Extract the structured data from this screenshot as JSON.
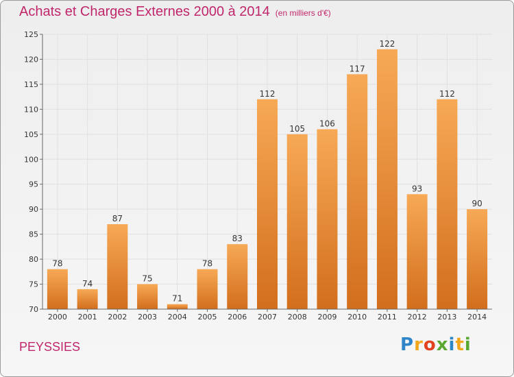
{
  "title": "Achats et Charges Externes 2000 à 2014",
  "subtitle": "(en milliers d'€)",
  "commune": "PEYSSIES",
  "logo": {
    "letters": [
      "P",
      "r",
      "o",
      "x",
      "i",
      "t",
      "i"
    ],
    "colors": [
      "#2e86c9",
      "#f2a71b",
      "#e2421f",
      "#5aa832",
      "#2e86c9",
      "#f2a71b",
      "#5aa832"
    ]
  },
  "colors": {
    "bar_top": "#f7a956",
    "bar_bottom": "#d26e1c",
    "accent": "#c0266b"
  },
  "chart_data": {
    "type": "bar",
    "title": "Achats et Charges Externes 2000 à 2014",
    "subtitle": "(en milliers d'€)",
    "categories": [
      "2000",
      "2001",
      "2002",
      "2003",
      "2004",
      "2005",
      "2006",
      "2007",
      "2008",
      "2009",
      "2010",
      "2011",
      "2012",
      "2013",
      "2014"
    ],
    "values": [
      78,
      74,
      87,
      75,
      71,
      78,
      83,
      112,
      105,
      106,
      117,
      122,
      93,
      112,
      90
    ],
    "ylim": [
      70,
      125
    ],
    "yticks": [
      70,
      75,
      80,
      85,
      90,
      95,
      100,
      105,
      110,
      115,
      120,
      125
    ],
    "grid": true,
    "legend": "none"
  }
}
